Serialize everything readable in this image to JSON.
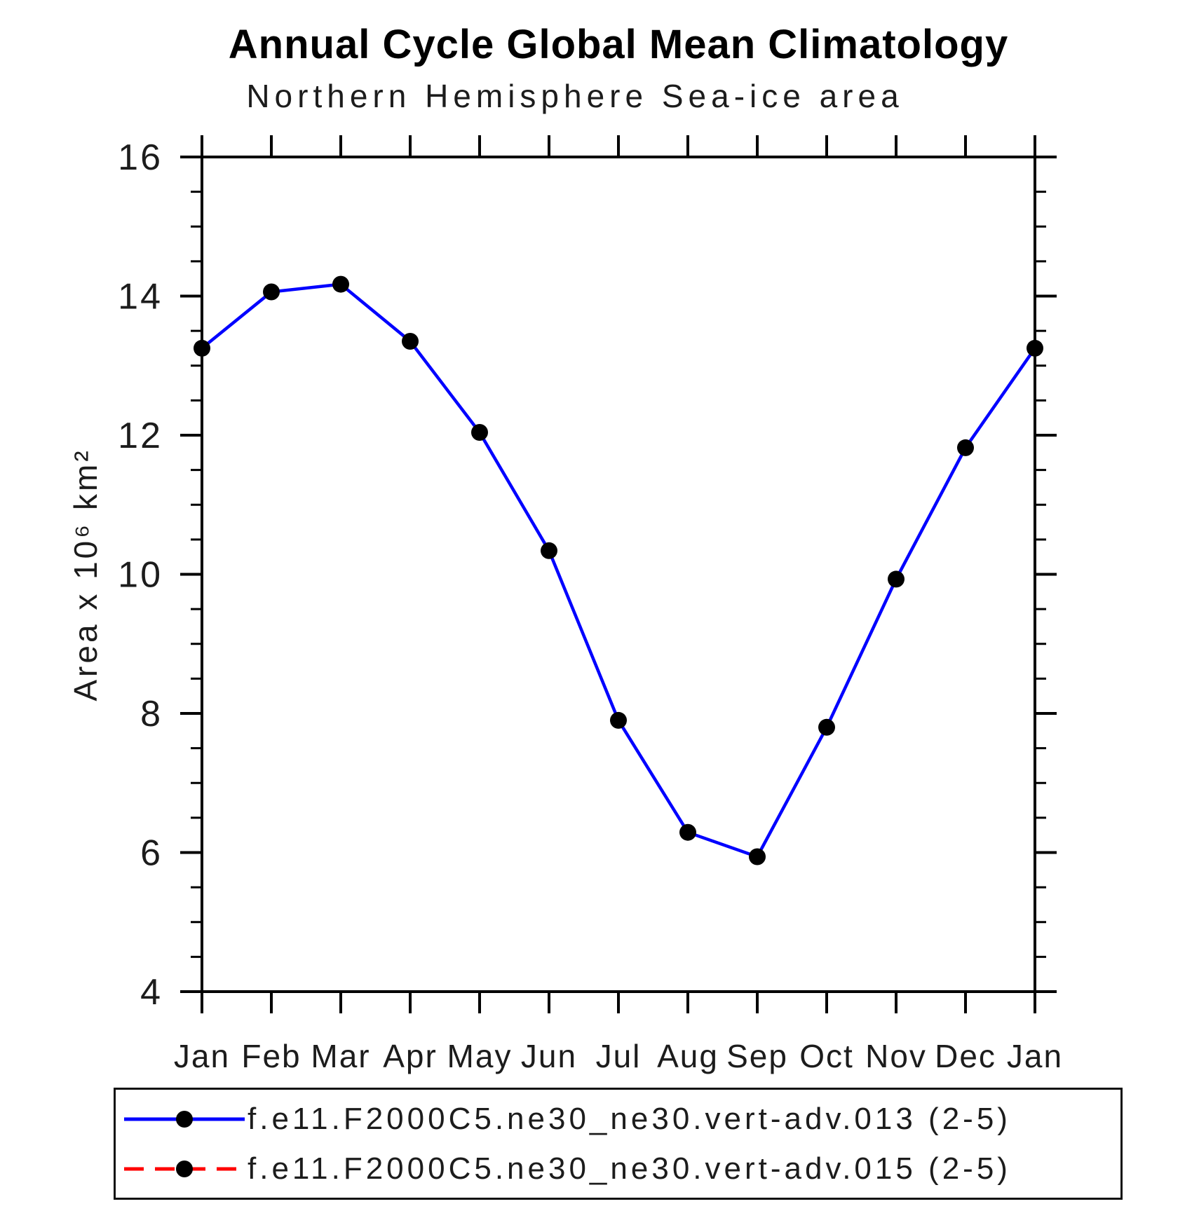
{
  "chart_data": {
    "type": "line",
    "title": "Annual Cycle Global Mean Climatology",
    "subtitle": "Northern Hemisphere Sea-ice area",
    "ylabel": "Area x 10⁶ km²",
    "xlabel": "",
    "categories": [
      "Jan",
      "Feb",
      "Mar",
      "Apr",
      "May",
      "Jun",
      "Jul",
      "Aug",
      "Sep",
      "Oct",
      "Nov",
      "Dec",
      "Jan"
    ],
    "ylim": [
      4,
      16
    ],
    "ytick_major": [
      4,
      6,
      8,
      10,
      12,
      14,
      16
    ],
    "ytick_minor_step": 0.5,
    "grid": false,
    "legend_position": "bottom",
    "axis_color": "#000000",
    "marker_color": "#000000",
    "series": [
      {
        "label": "f.e11.F2000C5.ne30_ne30.vert-adv.013 (2-5)",
        "color": "#0000ff",
        "line_style": "solid",
        "marker": "circle",
        "values": [
          13.25,
          14.06,
          14.17,
          13.35,
          12.04,
          10.34,
          7.9,
          6.29,
          5.94,
          7.8,
          9.93,
          11.82,
          13.25
        ]
      },
      {
        "label": "f.e11.F2000C5.ne30_ne30.vert-adv.015 (2-5)",
        "color": "#ff0000",
        "line_style": "dashed",
        "marker": "circle",
        "values": [],
        "visible_in_plot": false
      }
    ]
  }
}
